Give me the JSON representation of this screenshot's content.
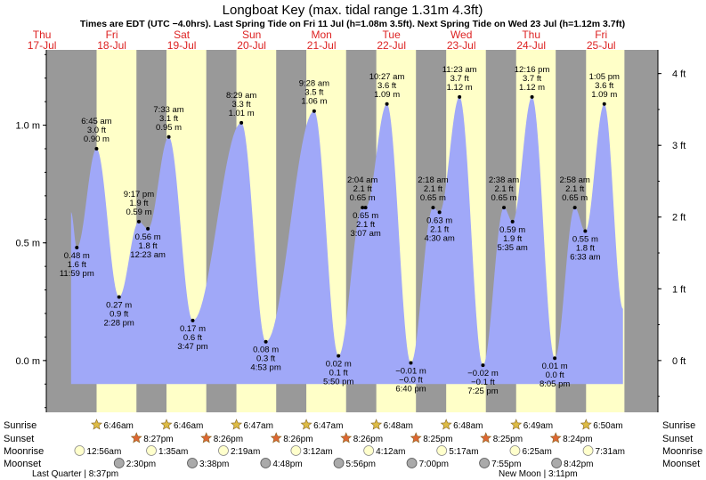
{
  "title": "Longboat Key (max. tidal range 1.31m 4.3ft)",
  "subtitle": "Times are EDT (UTC −4.0hrs). Last Spring Tide on Fri 11 Jul (h=1.08m 3.5ft). Next Spring Tide on Wed 23 Jul (h=1.12m 3.7ft)",
  "colors": {
    "night": "#999999",
    "day": "#ffffc8",
    "water": "#a0a8f8",
    "date_text": "#dd2222",
    "sunset_star": "#dd6633",
    "sunrise_star": "#ddbb44",
    "moonrise": "#ffffcc",
    "moonset": "#aaaaaa"
  },
  "chart_data": {
    "type": "area",
    "x_unit": "hours since Thu 17 Jul 00:00",
    "ylim_m": [
      -0.22,
      1.32
    ],
    "yaxis_left": {
      "unit": "m",
      "ticks": [
        {
          "v": 0.0,
          "label": "0.0 m"
        },
        {
          "v": 0.5,
          "label": "0.5 m"
        },
        {
          "v": 1.0,
          "label": "1.0 m"
        }
      ]
    },
    "yaxis_right": {
      "unit": "ft",
      "ticks": [
        {
          "v": 0,
          "label": "0 ft"
        },
        {
          "v": 1,
          "label": "1 ft"
        },
        {
          "v": 2,
          "label": "2 ft"
        },
        {
          "v": 3,
          "label": "3 ft"
        },
        {
          "v": 4,
          "label": "4 ft"
        }
      ]
    },
    "days": [
      {
        "dow": "Thu",
        "date": "17-Jul"
      },
      {
        "dow": "Fri",
        "date": "18-Jul"
      },
      {
        "dow": "Sat",
        "date": "19-Jul"
      },
      {
        "dow": "Sun",
        "date": "20-Jul"
      },
      {
        "dow": "Mon",
        "date": "21-Jul"
      },
      {
        "dow": "Tue",
        "date": "22-Jul"
      },
      {
        "dow": "Wed",
        "date": "23-Jul"
      },
      {
        "dow": "Thu",
        "date": "24-Jul"
      },
      {
        "dow": "Fri",
        "date": "25-Jul"
      }
    ],
    "daylight": [
      {
        "sunrise": 30.77,
        "sunset": 44.45
      },
      {
        "sunrise": 54.77,
        "sunset": 68.43
      },
      {
        "sunrise": 78.78,
        "sunset": 92.43
      },
      {
        "sunrise": 102.78,
        "sunset": 116.43
      },
      {
        "sunrise": 126.8,
        "sunset": 140.42
      },
      {
        "sunrise": 150.8,
        "sunset": 164.42
      },
      {
        "sunrise": 174.82,
        "sunset": 188.4
      },
      {
        "sunrise": 198.83,
        "sunset": 212.0
      }
    ],
    "extremes": [
      {
        "t": 23.98,
        "h": 0.48,
        "labels": [
          "0.48 m",
          "1.6 ft",
          "11:59 pm"
        ],
        "pos": "below"
      },
      {
        "t": 30.75,
        "h": 0.9,
        "labels": [
          "6:45 am",
          "3.0 ft",
          "0.90 m"
        ],
        "pos": "above"
      },
      {
        "t": 38.47,
        "h": 0.27,
        "labels": [
          "0.27 m",
          "0.9 ft",
          "2:28 pm"
        ],
        "pos": "below"
      },
      {
        "t": 45.28,
        "h": 0.59,
        "labels": [
          "9:17 pm",
          "1.9 ft",
          "0.59 m"
        ],
        "pos": "above"
      },
      {
        "t": 48.38,
        "h": 0.56,
        "labels": [
          "0.56 m",
          "1.8 ft",
          "12:23 am"
        ],
        "pos": "below"
      },
      {
        "t": 55.55,
        "h": 0.95,
        "labels": [
          "7:33 am",
          "3.1 ft",
          "0.95 m"
        ],
        "pos": "above"
      },
      {
        "t": 63.78,
        "h": 0.17,
        "labels": [
          "0.17 m",
          "0.6 ft",
          "3:47 pm"
        ],
        "pos": "below"
      },
      {
        "t": 80.48,
        "h": 1.01,
        "labels": [
          "8:29 am",
          "3.3 ft",
          "1.01 m"
        ],
        "pos": "above"
      },
      {
        "t": 88.88,
        "h": 0.08,
        "labels": [
          "0.08 m",
          "0.3 ft",
          "4:53 pm"
        ],
        "pos": "below"
      },
      {
        "t": 105.47,
        "h": 1.06,
        "labels": [
          "9:28 am",
          "3.5 ft",
          "1.06 m"
        ],
        "pos": "above"
      },
      {
        "t": 113.83,
        "h": 0.02,
        "labels": [
          "0.02 m",
          "0.1 ft",
          "5:50 pm"
        ],
        "pos": "below"
      },
      {
        "t": 122.07,
        "h": 0.65,
        "labels": [
          "2:04 am",
          "2.1 ft",
          "0.65 m"
        ],
        "pos": "above"
      },
      {
        "t": 123.12,
        "h": 0.65,
        "labels": [
          "0.65 m",
          "2.1 ft",
          "3:07 am"
        ],
        "pos": "below"
      },
      {
        "t": 130.45,
        "h": 1.09,
        "labels": [
          "10:27 am",
          "3.6 ft",
          "1.09 m"
        ],
        "pos": "above"
      },
      {
        "t": 138.67,
        "h": -0.01,
        "labels": [
          "−0.01 m",
          "−0.0 ft",
          "6:40 pm"
        ],
        "pos": "below"
      },
      {
        "t": 146.3,
        "h": 0.65,
        "labels": [
          "2:18 am",
          "2.1 ft",
          "0.65 m"
        ],
        "pos": "above"
      },
      {
        "t": 148.5,
        "h": 0.63,
        "labels": [
          "0.63 m",
          "2.1 ft",
          "4:30 am"
        ],
        "pos": "below"
      },
      {
        "t": 155.38,
        "h": 1.12,
        "labels": [
          "11:23 am",
          "3.7 ft",
          "1.12 m"
        ],
        "pos": "above"
      },
      {
        "t": 163.42,
        "h": -0.02,
        "labels": [
          "−0.02 m",
          "−0.1 ft",
          "7:25 pm"
        ],
        "pos": "below"
      },
      {
        "t": 170.63,
        "h": 0.65,
        "labels": [
          "2:38 am",
          "2.1 ft",
          "0.65 m"
        ],
        "pos": "above"
      },
      {
        "t": 173.58,
        "h": 0.59,
        "labels": [
          "0.59 m",
          "1.9 ft",
          "5:35 am"
        ],
        "pos": "below"
      },
      {
        "t": 180.27,
        "h": 1.12,
        "labels": [
          "12:16 pm",
          "3.7 ft",
          "1.12 m"
        ],
        "pos": "above"
      },
      {
        "t": 188.08,
        "h": 0.01,
        "labels": [
          "0.01 m",
          "0.0 ft",
          "8:05 pm"
        ],
        "pos": "below"
      },
      {
        "t": 194.97,
        "h": 0.65,
        "labels": [
          "2:58 am",
          "2.1 ft",
          "0.65 m"
        ],
        "pos": "above"
      },
      {
        "t": 198.55,
        "h": 0.55,
        "labels": [
          "0.55 m",
          "1.8 ft",
          "6:33 am"
        ],
        "pos": "below"
      },
      {
        "t": 205.08,
        "h": 1.09,
        "labels": [
          "1:05 pm",
          "3.6 ft",
          "1.09 m"
        ],
        "pos": "above"
      }
    ],
    "curve_start": {
      "t": 22.0,
      "h": 0.63
    },
    "curve_end": {
      "t": 211.5,
      "h": 0.22
    }
  },
  "sun_moon": {
    "row_labels": [
      "Sunrise",
      "Sunset",
      "Moonrise",
      "Moonset"
    ],
    "sunrise": [
      {
        "t": 30.77,
        "label": "6:46am"
      },
      {
        "t": 54.77,
        "label": "6:46am"
      },
      {
        "t": 78.78,
        "label": "6:47am"
      },
      {
        "t": 102.78,
        "label": "6:47am"
      },
      {
        "t": 126.8,
        "label": "6:48am"
      },
      {
        "t": 150.8,
        "label": "6:48am"
      },
      {
        "t": 174.82,
        "label": "6:49am"
      },
      {
        "t": 198.83,
        "label": "6:50am"
      }
    ],
    "sunset": [
      {
        "t": 44.45,
        "label": "8:27pm"
      },
      {
        "t": 68.43,
        "label": "8:26pm"
      },
      {
        "t": 92.43,
        "label": "8:26pm"
      },
      {
        "t": 116.43,
        "label": "8:26pm"
      },
      {
        "t": 140.42,
        "label": "8:25pm"
      },
      {
        "t": 164.42,
        "label": "8:25pm"
      },
      {
        "t": 188.4,
        "label": "8:24pm"
      }
    ],
    "moonrise": [
      {
        "t": 24.93,
        "label": "12:56am"
      },
      {
        "t": 49.58,
        "label": "1:35am"
      },
      {
        "t": 74.32,
        "label": "2:19am"
      },
      {
        "t": 99.2,
        "label": "3:12am"
      },
      {
        "t": 124.2,
        "label": "4:12am"
      },
      {
        "t": 149.28,
        "label": "5:17am"
      },
      {
        "t": 174.42,
        "label": "6:25am"
      },
      {
        "t": 199.52,
        "label": "7:31am"
      }
    ],
    "moonset": [
      {
        "t": 38.5,
        "label": "2:30pm"
      },
      {
        "t": 63.63,
        "label": "3:38pm"
      },
      {
        "t": 88.8,
        "label": "4:48pm"
      },
      {
        "t": 113.93,
        "label": "5:56pm"
      },
      {
        "t": 139.0,
        "label": "7:00pm"
      },
      {
        "t": 163.92,
        "label": "7:55pm"
      },
      {
        "t": 188.7,
        "label": "8:42pm"
      }
    ],
    "moon_phases": [
      {
        "label": "Last Quarter | 8:37pm",
        "pos": "left"
      },
      {
        "label": "New Moon | 3:11pm",
        "pos": "right"
      }
    ]
  }
}
